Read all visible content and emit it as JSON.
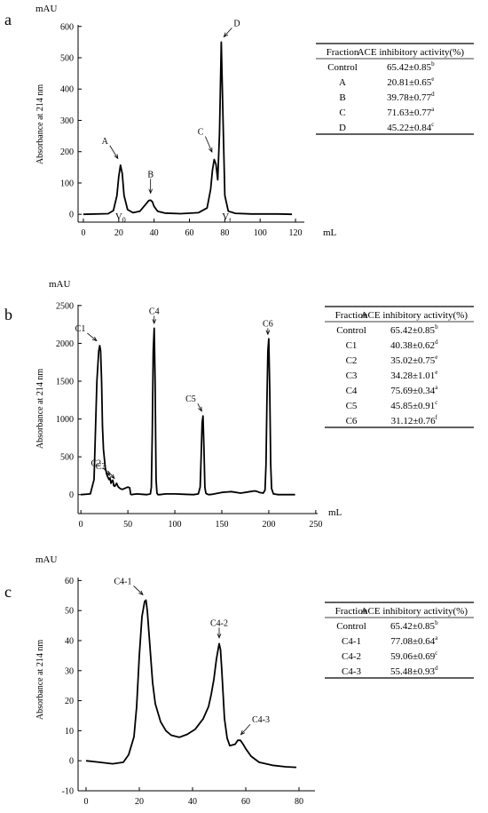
{
  "chart_data": [
    {
      "type": "line",
      "panel_label": "a",
      "ylabel": "Absorbance at 214 nm",
      "yunit": "mAU",
      "xunit": "mL",
      "xlim": [
        -3,
        125
      ],
      "ylim": [
        -25,
        605
      ],
      "xticks": [
        0,
        20,
        40,
        60,
        80,
        100,
        120
      ],
      "yticks": [
        0,
        100,
        200,
        300,
        400,
        500,
        600
      ],
      "grid": false,
      "series": [
        {
          "x": [
            0,
            14,
            17,
            19,
            20,
            21,
            22,
            23,
            25,
            28,
            32,
            35,
            37,
            38,
            39,
            40,
            42,
            46,
            55,
            65,
            70,
            72,
            73,
            74,
            75,
            76,
            77,
            78,
            79,
            80,
            82,
            86,
            95,
            110,
            118
          ],
          "y": [
            0,
            2,
            12,
            60,
            120,
            157,
            130,
            60,
            15,
            5,
            10,
            30,
            44,
            45,
            40,
            25,
            10,
            4,
            2,
            5,
            20,
            80,
            140,
            175,
            160,
            110,
            260,
            550,
            300,
            60,
            10,
            3,
            1,
            1,
            0
          ]
        }
      ],
      "peak_labels": [
        {
          "label": "A",
          "x": 21,
          "y": 157
        },
        {
          "label": "B",
          "x": 38,
          "y": 45
        },
        {
          "label": "C",
          "x": 74,
          "y": 175
        },
        {
          "label": "D",
          "x": 78,
          "y": 550
        }
      ],
      "axis_markers": [
        {
          "label": "V",
          "sub": "0",
          "x": 21
        },
        {
          "label": "V",
          "sub": "t",
          "x": 81
        }
      ],
      "table": {
        "headers": [
          "Fraction",
          "ACE inhibitory activity(%)"
        ],
        "rows": [
          {
            "fraction": "Control",
            "value": "65.42±0.85",
            "sup": "b"
          },
          {
            "fraction": "A",
            "value": "20.81±0.65",
            "sup": "e"
          },
          {
            "fraction": "B",
            "value": "39.78±0.77",
            "sup": "d"
          },
          {
            "fraction": "C",
            "value": "71.63±0.77",
            "sup": "a"
          },
          {
            "fraction": "D",
            "value": "45.22±0.84",
            "sup": "c"
          }
        ]
      }
    },
    {
      "type": "line",
      "panel_label": "b",
      "ylabel": "Absorbance at 214 nm",
      "yunit": "mAU",
      "xunit": "mL",
      "xlim": [
        -3,
        252
      ],
      "ylim": [
        -250,
        2510
      ],
      "xticks": [
        0,
        50,
        100,
        150,
        200,
        250
      ],
      "yticks": [
        0,
        500,
        1000,
        1500,
        2000,
        2500
      ],
      "grid": false,
      "series": [
        {
          "x": [
            0,
            10,
            14,
            17,
            19,
            20,
            21,
            22,
            23,
            24,
            26,
            28,
            30,
            31,
            32,
            33,
            34,
            35,
            36,
            37,
            38,
            39,
            40,
            42,
            44,
            46,
            50,
            52,
            53,
            54,
            56,
            60,
            65,
            70,
            74,
            75,
            76,
            77,
            78,
            79,
            80,
            81,
            82,
            84,
            90,
            100,
            110,
            120,
            125,
            127,
            128,
            129,
            130,
            131,
            132,
            133,
            134,
            136,
            140,
            150,
            160,
            170,
            180,
            185,
            188,
            190,
            194,
            196,
            197,
            198,
            199,
            200,
            201,
            202,
            203,
            205,
            210,
            220,
            228
          ],
          "y": [
            0,
            10,
            200,
            1500,
            1900,
            1970,
            1900,
            1500,
            900,
            600,
            350,
            250,
            200,
            220,
            150,
            180,
            190,
            120,
            110,
            130,
            150,
            120,
            100,
            80,
            70,
            80,
            100,
            90,
            5,
            0,
            5,
            10,
            5,
            0,
            10,
            100,
            800,
            1900,
            2200,
            1500,
            200,
            20,
            0,
            0,
            10,
            10,
            5,
            0,
            10,
            100,
            500,
            950,
            1040,
            600,
            100,
            20,
            10,
            0,
            5,
            30,
            40,
            20,
            40,
            50,
            40,
            30,
            20,
            60,
            400,
            1200,
            1900,
            2060,
            1400,
            400,
            80,
            10,
            0,
            0,
            0
          ]
        }
      ],
      "peak_labels": [
        {
          "label": "C1",
          "x": 20,
          "y": 1970
        },
        {
          "label": "C2",
          "x": 33,
          "y": 190
        },
        {
          "label": "C3",
          "x": 38,
          "y": 150
        },
        {
          "label": "C4",
          "x": 78,
          "y": 2200
        },
        {
          "label": "C5",
          "x": 130,
          "y": 1040
        },
        {
          "label": "C6",
          "x": 199,
          "y": 2060
        }
      ],
      "table": {
        "headers": [
          "Fraction",
          "ACE inhibitory activity(%)"
        ],
        "rows": [
          {
            "fraction": "Control",
            "value": "65.42±0.85",
            "sup": "b"
          },
          {
            "fraction": "C1",
            "value": "40.38±0.62",
            "sup": "d"
          },
          {
            "fraction": "C2",
            "value": "35.02±0.75",
            "sup": "e"
          },
          {
            "fraction": "C3",
            "value": "34.28±1.01",
            "sup": "e"
          },
          {
            "fraction": "C4",
            "value": "75.69±0.34",
            "sup": "a"
          },
          {
            "fraction": "C5",
            "value": "45.85±0.91",
            "sup": "c"
          },
          {
            "fraction": "C6",
            "value": "31.12±0.76",
            "sup": "f"
          }
        ]
      }
    },
    {
      "type": "line",
      "panel_label": "c",
      "ylabel": "Absorbance at 214 nm",
      "yunit": "mAU",
      "xunit": "",
      "xlim": [
        -3,
        86
      ],
      "ylim": [
        -10,
        61
      ],
      "xticks": [
        0,
        20,
        40,
        60,
        80
      ],
      "yticks": [
        -10,
        0,
        10,
        20,
        30,
        40,
        50,
        60
      ],
      "grid": false,
      "series": [
        {
          "x": [
            0,
            5,
            10,
            14,
            16,
            18,
            19,
            20,
            21,
            22,
            22.5,
            23,
            24,
            25,
            26,
            28,
            30,
            32,
            35,
            38,
            41,
            44,
            46,
            47,
            48,
            49,
            50,
            50.5,
            51,
            52,
            53,
            54,
            56,
            57,
            58,
            59,
            60,
            62,
            65,
            70,
            75,
            79
          ],
          "y": [
            0,
            -0.5,
            -1,
            -0.5,
            2,
            8,
            18,
            35,
            48,
            53,
            53.5,
            50,
            38,
            26,
            19,
            13,
            10,
            8.5,
            7.8,
            8.8,
            10.5,
            14,
            18,
            22,
            27,
            34,
            39,
            37,
            30,
            14,
            7.5,
            5,
            5.5,
            6.8,
            6.8,
            5.5,
            4,
            1.5,
            -0.5,
            -1.5,
            -2,
            -2.2
          ]
        }
      ],
      "peak_labels": [
        {
          "label": "C4-1",
          "x": 22.5,
          "y": 53.5
        },
        {
          "label": "C4-2",
          "x": 50,
          "y": 39
        },
        {
          "label": "C4-3",
          "x": 57,
          "y": 6.8
        }
      ],
      "table": {
        "headers": [
          "Fraction",
          "ACE inhibitory activity(%)"
        ],
        "rows": [
          {
            "fraction": "Control",
            "value": "65.42±0.85",
            "sup": "b"
          },
          {
            "fraction": "C4-1",
            "value": "77.08±0.64",
            "sup": "a"
          },
          {
            "fraction": "C4-2",
            "value": "59.06±0.69",
            "sup": "c"
          },
          {
            "fraction": "C4-3",
            "value": "55.48±0.93",
            "sup": "d"
          }
        ]
      }
    }
  ]
}
